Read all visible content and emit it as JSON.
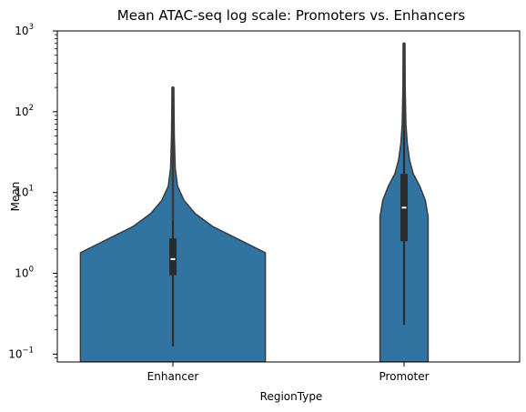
{
  "chart_data": {
    "type": "violin",
    "title": "Mean ATAC-seq log scale: Promoters vs. Enhancers",
    "xlabel": "RegionType",
    "ylabel": "Mean",
    "yscale": "log",
    "ylim": [
      0.08,
      1000
    ],
    "yticks": [
      {
        "value": 0.1,
        "base": "10",
        "exp": "−1"
      },
      {
        "value": 1,
        "base": "10",
        "exp": "0"
      },
      {
        "value": 10,
        "base": "10",
        "exp": "1"
      },
      {
        "value": 100,
        "base": "10",
        "exp": "2"
      },
      {
        "value": 1000,
        "base": "10",
        "exp": "3"
      }
    ],
    "categories": [
      "Enhancer",
      "Promoter"
    ],
    "colors": {
      "fill": "#3274a1",
      "edge": "#3a3a3a",
      "box": "#2b2b2b",
      "median": "#ffffff"
    },
    "grid": false,
    "violins": [
      {
        "category": "Enhancer",
        "whisker_low": 0.125,
        "q1": 0.95,
        "median": 1.5,
        "q3": 2.7,
        "whisker_high": 4.7,
        "max": 200,
        "density": [
          {
            "y": 0.08,
            "w": 1.0
          },
          {
            "y": 1.8,
            "w": 1.0
          },
          {
            "y": 3.8,
            "w": 0.43
          },
          {
            "y": 5.5,
            "w": 0.24
          },
          {
            "y": 8,
            "w": 0.12
          },
          {
            "y": 12,
            "w": 0.05
          },
          {
            "y": 20,
            "w": 0.025
          },
          {
            "y": 50,
            "w": 0.015
          },
          {
            "y": 100,
            "w": 0.012
          },
          {
            "y": 200,
            "w": 0.01
          }
        ]
      },
      {
        "category": "Promoter",
        "whisker_low": 0.23,
        "q1": 2.5,
        "median": 6.5,
        "q3": 17,
        "whisker_high": 60,
        "max": 700,
        "density": [
          {
            "y": 0.08,
            "w": 0.26
          },
          {
            "y": 5,
            "w": 0.26
          },
          {
            "y": 8,
            "w": 0.23
          },
          {
            "y": 12,
            "w": 0.17
          },
          {
            "y": 17,
            "w": 0.1
          },
          {
            "y": 25,
            "w": 0.06
          },
          {
            "y": 40,
            "w": 0.035
          },
          {
            "y": 70,
            "w": 0.02
          },
          {
            "y": 200,
            "w": 0.012
          },
          {
            "y": 700,
            "w": 0.01
          }
        ]
      }
    ]
  }
}
